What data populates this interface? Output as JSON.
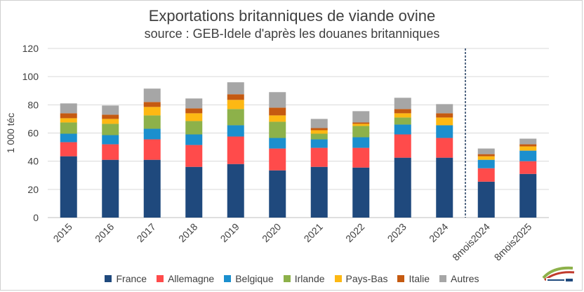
{
  "chart_data": {
    "type": "bar",
    "stacked": true,
    "title": "Exportations britanniques de viande ovine",
    "subtitle": "source : GEB-Idele d'après les douanes britanniques",
    "ylabel": "1 000 téc",
    "xlabel": "",
    "ylim": [
      0,
      120
    ],
    "yticks": [
      0,
      20,
      40,
      60,
      80,
      100,
      120
    ],
    "grid": true,
    "legend_position": "bottom",
    "categories": [
      "2015",
      "2016",
      "2017",
      "2018",
      "2019",
      "2020",
      "2021",
      "2022",
      "2023",
      "2024",
      "8mois2024",
      "8mois2025"
    ],
    "separator_after": "2024",
    "series": [
      {
        "name": "France",
        "color": "#1f497d",
        "values": [
          43.5,
          41,
          41,
          36,
          38,
          33.5,
          36,
          35.5,
          42.5,
          42.5,
          25.5,
          31
        ]
      },
      {
        "name": "Allemagne",
        "color": "#ff4b4b",
        "values": [
          10,
          11,
          14.5,
          15.5,
          19.5,
          15.5,
          13.5,
          14,
          16.5,
          14,
          9.5,
          9
        ]
      },
      {
        "name": "Belgique",
        "color": "#1b8fce",
        "values": [
          6,
          6.5,
          7.5,
          7.5,
          8,
          7.5,
          6,
          7.5,
          7,
          9,
          6,
          7.5
        ]
      },
      {
        "name": "Irlande",
        "color": "#8db14a",
        "values": [
          8,
          8,
          9.5,
          9.5,
          11.5,
          11.5,
          4,
          8,
          5,
          0,
          0,
          0
        ]
      },
      {
        "name": "Pays-Bas",
        "color": "#fdb813",
        "values": [
          3,
          3.5,
          6,
          5.5,
          6.5,
          4.5,
          2.5,
          1.5,
          3,
          5.5,
          2.5,
          3
        ]
      },
      {
        "name": "Italie",
        "color": "#c55a11",
        "values": [
          3.5,
          3,
          3.5,
          3.5,
          4,
          5.5,
          1.5,
          1,
          3,
          3,
          1.5,
          1.5
        ]
      },
      {
        "name": "Autres",
        "color": "#a6a6a6",
        "values": [
          7,
          6.5,
          9.5,
          7,
          8.5,
          11,
          6.5,
          8,
          8,
          6.5,
          4,
          4
        ]
      }
    ]
  }
}
